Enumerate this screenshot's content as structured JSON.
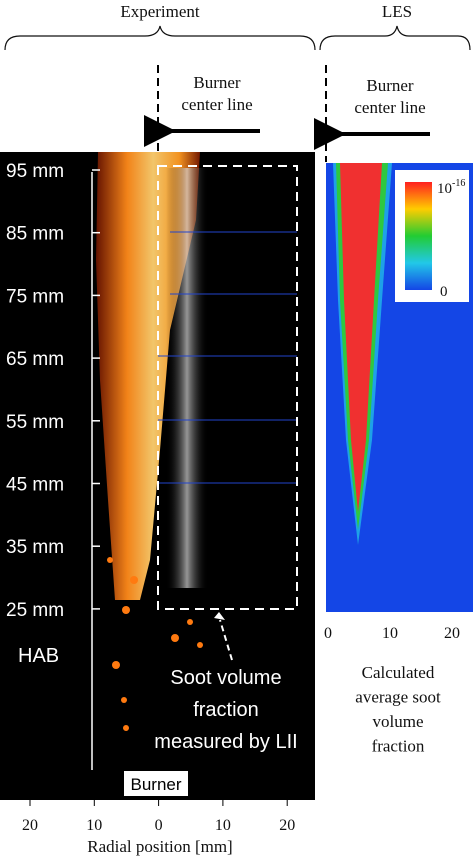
{
  "experiment": {
    "header": "Experiment",
    "center_line_label": [
      "Burner",
      "center line"
    ],
    "hab_ticks": [
      "95 mm",
      "85 mm",
      "75 mm",
      "65 mm",
      "55 mm",
      "45 mm",
      "35 mm",
      "25 mm"
    ],
    "hab_label": "HAB",
    "annotation": [
      "Soot volume",
      "fraction",
      "measured by LII"
    ],
    "burner_label": "Burner",
    "x_ticks": [
      "20",
      "10",
      "0",
      "10",
      "20"
    ],
    "x_label": "Radial position [mm]"
  },
  "les": {
    "header": "LES",
    "center_line_label": [
      "Burner",
      "center line"
    ],
    "colorbar": {
      "max_base": "10",
      "max_exponent": "-16",
      "min": "0"
    },
    "x_ticks": [
      "0",
      "10",
      "20"
    ],
    "caption": [
      "Calculated",
      "average soot",
      "volume",
      "fraction"
    ]
  }
}
